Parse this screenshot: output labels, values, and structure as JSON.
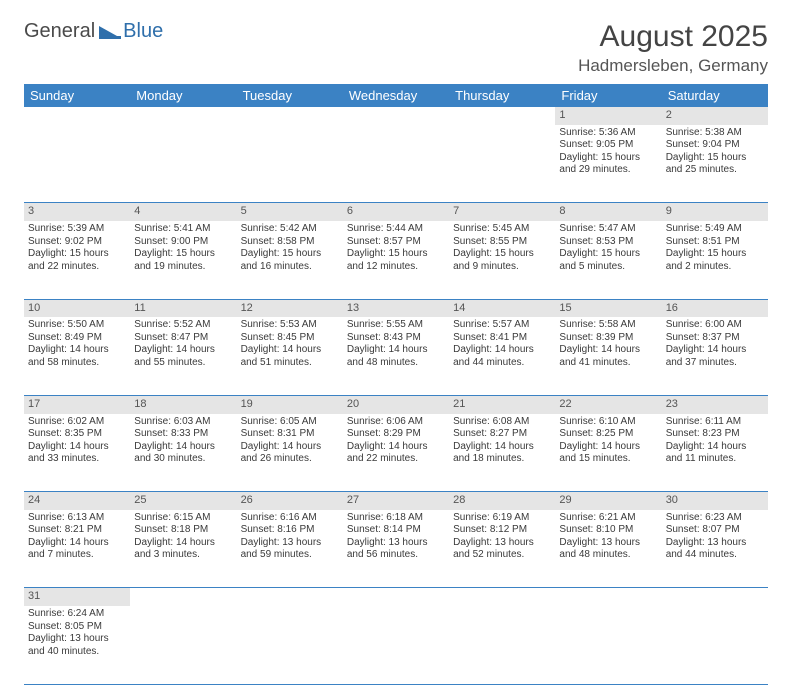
{
  "logo": {
    "text1": "General",
    "text2": "Blue"
  },
  "title": "August 2025",
  "location": "Hadmersleben, Germany",
  "colors": {
    "header_bg": "#3b82c4",
    "daynum_bg": "#e5e5e5",
    "border": "#3b82c4"
  },
  "day_headers": [
    "Sunday",
    "Monday",
    "Tuesday",
    "Wednesday",
    "Thursday",
    "Friday",
    "Saturday"
  ],
  "weeks": [
    [
      null,
      null,
      null,
      null,
      null,
      {
        "n": "1",
        "sr": "5:36 AM",
        "ss": "9:05 PM",
        "dl": "15 hours and 29 minutes."
      },
      {
        "n": "2",
        "sr": "5:38 AM",
        "ss": "9:04 PM",
        "dl": "15 hours and 25 minutes."
      }
    ],
    [
      {
        "n": "3",
        "sr": "5:39 AM",
        "ss": "9:02 PM",
        "dl": "15 hours and 22 minutes."
      },
      {
        "n": "4",
        "sr": "5:41 AM",
        "ss": "9:00 PM",
        "dl": "15 hours and 19 minutes."
      },
      {
        "n": "5",
        "sr": "5:42 AM",
        "ss": "8:58 PM",
        "dl": "15 hours and 16 minutes."
      },
      {
        "n": "6",
        "sr": "5:44 AM",
        "ss": "8:57 PM",
        "dl": "15 hours and 12 minutes."
      },
      {
        "n": "7",
        "sr": "5:45 AM",
        "ss": "8:55 PM",
        "dl": "15 hours and 9 minutes."
      },
      {
        "n": "8",
        "sr": "5:47 AM",
        "ss": "8:53 PM",
        "dl": "15 hours and 5 minutes."
      },
      {
        "n": "9",
        "sr": "5:49 AM",
        "ss": "8:51 PM",
        "dl": "15 hours and 2 minutes."
      }
    ],
    [
      {
        "n": "10",
        "sr": "5:50 AM",
        "ss": "8:49 PM",
        "dl": "14 hours and 58 minutes."
      },
      {
        "n": "11",
        "sr": "5:52 AM",
        "ss": "8:47 PM",
        "dl": "14 hours and 55 minutes."
      },
      {
        "n": "12",
        "sr": "5:53 AM",
        "ss": "8:45 PM",
        "dl": "14 hours and 51 minutes."
      },
      {
        "n": "13",
        "sr": "5:55 AM",
        "ss": "8:43 PM",
        "dl": "14 hours and 48 minutes."
      },
      {
        "n": "14",
        "sr": "5:57 AM",
        "ss": "8:41 PM",
        "dl": "14 hours and 44 minutes."
      },
      {
        "n": "15",
        "sr": "5:58 AM",
        "ss": "8:39 PM",
        "dl": "14 hours and 41 minutes."
      },
      {
        "n": "16",
        "sr": "6:00 AM",
        "ss": "8:37 PM",
        "dl": "14 hours and 37 minutes."
      }
    ],
    [
      {
        "n": "17",
        "sr": "6:02 AM",
        "ss": "8:35 PM",
        "dl": "14 hours and 33 minutes."
      },
      {
        "n": "18",
        "sr": "6:03 AM",
        "ss": "8:33 PM",
        "dl": "14 hours and 30 minutes."
      },
      {
        "n": "19",
        "sr": "6:05 AM",
        "ss": "8:31 PM",
        "dl": "14 hours and 26 minutes."
      },
      {
        "n": "20",
        "sr": "6:06 AM",
        "ss": "8:29 PM",
        "dl": "14 hours and 22 minutes."
      },
      {
        "n": "21",
        "sr": "6:08 AM",
        "ss": "8:27 PM",
        "dl": "14 hours and 18 minutes."
      },
      {
        "n": "22",
        "sr": "6:10 AM",
        "ss": "8:25 PM",
        "dl": "14 hours and 15 minutes."
      },
      {
        "n": "23",
        "sr": "6:11 AM",
        "ss": "8:23 PM",
        "dl": "14 hours and 11 minutes."
      }
    ],
    [
      {
        "n": "24",
        "sr": "6:13 AM",
        "ss": "8:21 PM",
        "dl": "14 hours and 7 minutes."
      },
      {
        "n": "25",
        "sr": "6:15 AM",
        "ss": "8:18 PM",
        "dl": "14 hours and 3 minutes."
      },
      {
        "n": "26",
        "sr": "6:16 AM",
        "ss": "8:16 PM",
        "dl": "13 hours and 59 minutes."
      },
      {
        "n": "27",
        "sr": "6:18 AM",
        "ss": "8:14 PM",
        "dl": "13 hours and 56 minutes."
      },
      {
        "n": "28",
        "sr": "6:19 AM",
        "ss": "8:12 PM",
        "dl": "13 hours and 52 minutes."
      },
      {
        "n": "29",
        "sr": "6:21 AM",
        "ss": "8:10 PM",
        "dl": "13 hours and 48 minutes."
      },
      {
        "n": "30",
        "sr": "6:23 AM",
        "ss": "8:07 PM",
        "dl": "13 hours and 44 minutes."
      }
    ],
    [
      {
        "n": "31",
        "sr": "6:24 AM",
        "ss": "8:05 PM",
        "dl": "13 hours and 40 minutes."
      },
      null,
      null,
      null,
      null,
      null,
      null
    ]
  ],
  "labels": {
    "sunrise": "Sunrise:",
    "sunset": "Sunset:",
    "daylight": "Daylight:"
  }
}
